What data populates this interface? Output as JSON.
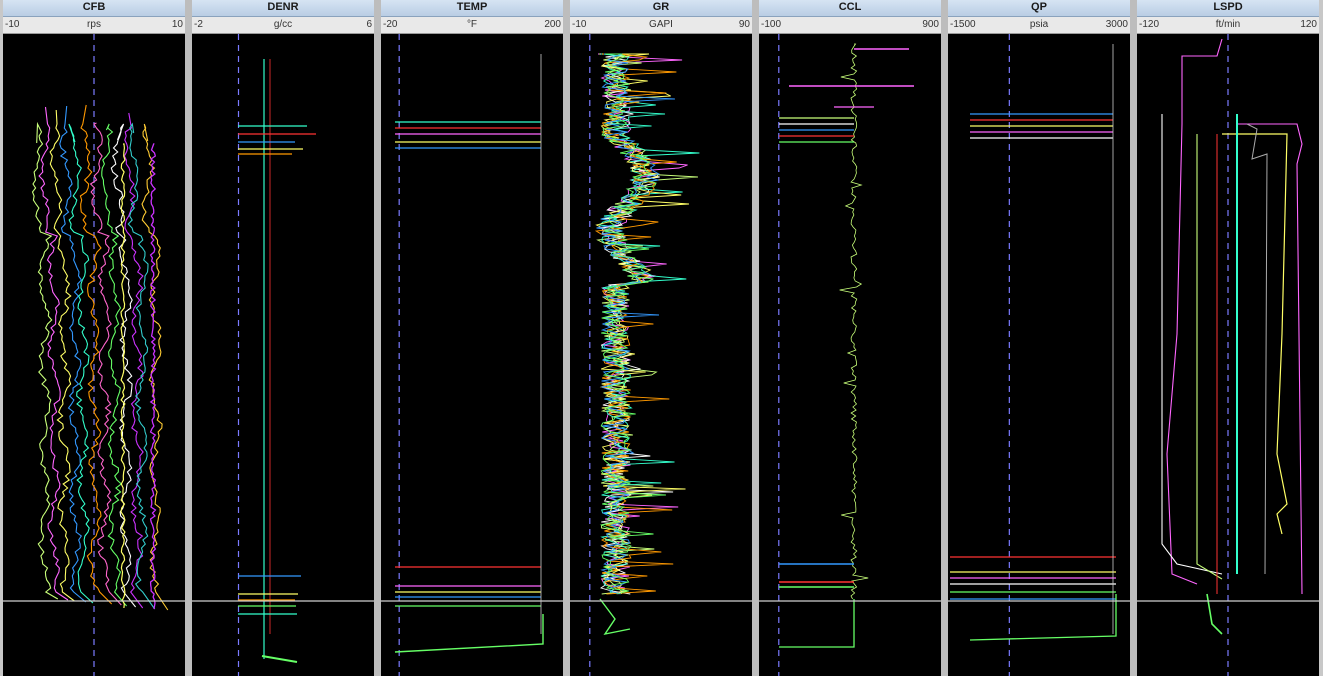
{
  "chart_data": [
    {
      "type": "line",
      "title": "CFB",
      "xlabel": "rps",
      "xlim": [
        -10,
        10
      ],
      "scale": {
        "min_label": "-10",
        "max_label": "10",
        "unit": "rps"
      },
      "baseline_value": 0,
      "series_colors": [
        "#c8ff7a",
        "#ff66ff",
        "#ffff66",
        "#3399ff",
        "#33ffcc",
        "#ff9900",
        "#ff66cc",
        "#66ff66",
        "#ffffff",
        "#cc33ff",
        "#33cccc",
        "#ffcc33"
      ]
    },
    {
      "type": "line",
      "title": "DENR",
      "xlabel": "g/cc",
      "xlim": [
        -2,
        6
      ],
      "scale": {
        "min_label": "-2",
        "max_label": "6",
        "unit": "g/cc"
      },
      "baseline_value": 0,
      "series_colors": [
        "#33ffcc",
        "#ff3333",
        "#3399ff",
        "#ffff66",
        "#ff9900",
        "#66ff66"
      ]
    },
    {
      "type": "line",
      "title": "TEMP",
      "xlabel": "°F",
      "xlim": [
        -20,
        200
      ],
      "scale": {
        "min_label": "-20",
        "max_label": "200",
        "unit": "°F"
      },
      "baseline_value": 0,
      "series_colors": [
        "#33ffcc",
        "#ff3333",
        "#ff66ff",
        "#ffff66",
        "#3399ff",
        "#66ff66"
      ]
    },
    {
      "type": "line",
      "title": "GR",
      "xlabel": "GAPI",
      "xlim": [
        -10,
        90
      ],
      "scale": {
        "min_label": "-10",
        "max_label": "90",
        "unit": "GAPI"
      },
      "baseline_value": 0,
      "series_colors": [
        "#ff66ff",
        "#c8ff7a",
        "#ffffff",
        "#33ffcc",
        "#ffff66",
        "#ff9900",
        "#3399ff",
        "#66ff66"
      ]
    },
    {
      "type": "line",
      "title": "CCL",
      "xlabel": "",
      "xlim": [
        -100,
        900
      ],
      "scale": {
        "min_label": "-100",
        "max_label": "900",
        "unit": ""
      },
      "baseline_value": 0,
      "series_colors": [
        "#ff66ff",
        "#c8ff7a",
        "#ffffff",
        "#3399ff",
        "#ff3333",
        "#66ff66"
      ]
    },
    {
      "type": "line",
      "title": "QP",
      "xlabel": "psia",
      "xlim": [
        -1500,
        3000
      ],
      "scale": {
        "min_label": "-1500",
        "max_label": "3000",
        "unit": "psia"
      },
      "baseline_value": 0,
      "series_colors": [
        "#3399ff",
        "#ff3333",
        "#ffff66",
        "#ff66ff",
        "#ffffff",
        "#66ff66"
      ]
    },
    {
      "type": "line",
      "title": "LSPD",
      "xlabel": "ft/min",
      "xlim": [
        -120,
        120
      ],
      "scale": {
        "min_label": "-120",
        "max_label": "120",
        "unit": "ft/min"
      },
      "baseline_value": 0,
      "series_colors": [
        "#ff66ff",
        "#ffffff",
        "#c8ff7a",
        "#ffff66",
        "#33ffcc",
        "#ff3333",
        "#66ff66",
        "#ff9900"
      ]
    }
  ]
}
